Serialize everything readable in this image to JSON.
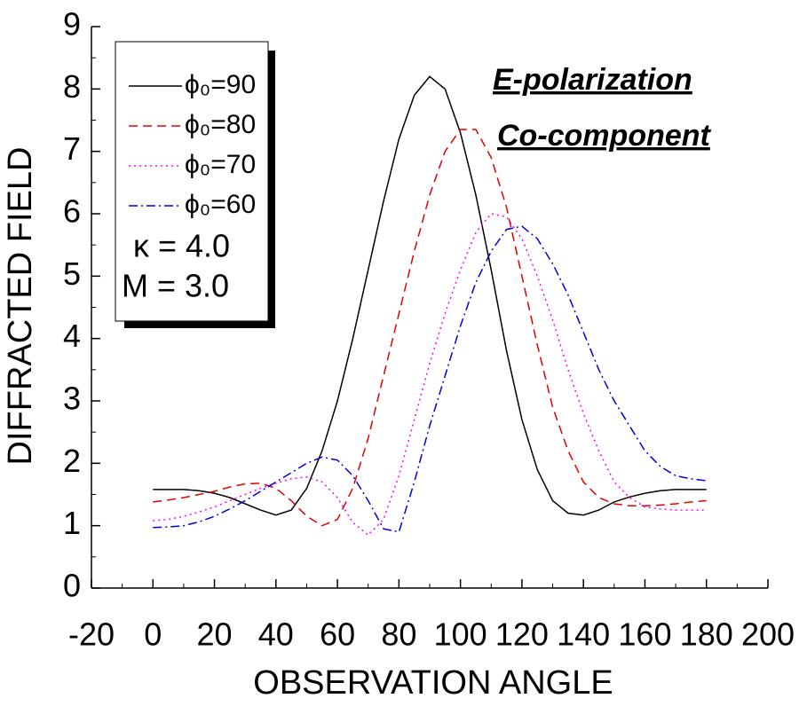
{
  "chart_data": {
    "type": "line",
    "xlabel": "OBSERVATION ANGLE",
    "ylabel": "DIFFRACTED FIELD",
    "annotations": [
      "E-polarization",
      "Co-component",
      "κ = 4.0",
      "M = 3.0"
    ],
    "x": [
      0,
      5,
      10,
      15,
      20,
      25,
      30,
      35,
      40,
      45,
      50,
      55,
      60,
      65,
      70,
      75,
      80,
      85,
      90,
      95,
      100,
      105,
      110,
      115,
      120,
      125,
      130,
      135,
      140,
      145,
      150,
      155,
      160,
      165,
      170,
      175,
      180
    ],
    "series": [
      {
        "name": "ϕ₀=90",
        "color": "#000000",
        "dash": "solid",
        "values": [
          1.58,
          1.58,
          1.58,
          1.56,
          1.52,
          1.45,
          1.35,
          1.25,
          1.17,
          1.25,
          1.6,
          2.2,
          3.0,
          4.0,
          5.1,
          6.2,
          7.2,
          7.9,
          8.2,
          8.0,
          7.3,
          6.3,
          5.1,
          3.8,
          2.7,
          1.9,
          1.4,
          1.2,
          1.17,
          1.25,
          1.38,
          1.46,
          1.52,
          1.56,
          1.58,
          1.58,
          1.58
        ]
      },
      {
        "name": "ϕ₀=80",
        "color": "#e00000",
        "dash": "dashed",
        "values": [
          1.38,
          1.41,
          1.45,
          1.5,
          1.55,
          1.62,
          1.67,
          1.68,
          1.6,
          1.4,
          1.15,
          1.0,
          1.1,
          1.6,
          2.4,
          3.4,
          4.4,
          5.4,
          6.3,
          7.0,
          7.35,
          7.35,
          6.9,
          6.1,
          5.0,
          3.9,
          2.9,
          2.2,
          1.7,
          1.45,
          1.35,
          1.32,
          1.32,
          1.33,
          1.35,
          1.38,
          1.4
        ]
      },
      {
        "name": "ϕ₀=70",
        "color": "#ff00ff",
        "dash": "dotted",
        "values": [
          1.08,
          1.1,
          1.15,
          1.22,
          1.3,
          1.4,
          1.5,
          1.6,
          1.68,
          1.75,
          1.78,
          1.7,
          1.45,
          1.05,
          0.85,
          1.1,
          1.8,
          2.7,
          3.6,
          4.4,
          5.1,
          5.7,
          6.0,
          5.95,
          5.6,
          5.0,
          4.3,
          3.5,
          2.8,
          2.2,
          1.7,
          1.45,
          1.3,
          1.27,
          1.25,
          1.25,
          1.25
        ]
      },
      {
        "name": "ϕ₀=60",
        "color": "#0000e0",
        "dash": "dashdot",
        "values": [
          0.97,
          0.98,
          1.0,
          1.06,
          1.15,
          1.27,
          1.4,
          1.55,
          1.7,
          1.85,
          2.0,
          2.1,
          2.05,
          1.8,
          1.4,
          0.95,
          0.9,
          1.7,
          2.6,
          3.4,
          4.2,
          4.9,
          5.4,
          5.75,
          5.8,
          5.6,
          5.2,
          4.7,
          4.1,
          3.5,
          3.0,
          2.6,
          2.2,
          1.95,
          1.8,
          1.75,
          1.72
        ]
      }
    ],
    "xlim": [
      -20,
      200
    ],
    "xticks": [
      -20,
      0,
      20,
      40,
      60,
      80,
      100,
      120,
      140,
      160,
      180,
      200
    ],
    "ylim": [
      0,
      9
    ],
    "yticks": [
      0,
      1,
      2,
      3,
      4,
      5,
      6,
      7,
      8,
      9
    ],
    "grid": false,
    "legend": "upper left"
  }
}
